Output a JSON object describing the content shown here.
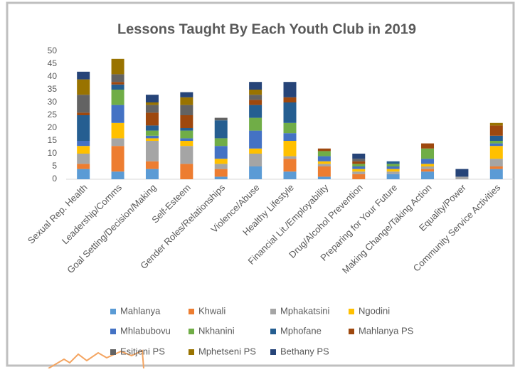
{
  "chart_data": {
    "type": "stacked_bar",
    "title": "Lessons Taught By Each Youth Club in 2019",
    "categories": [
      "Sexual Rep. Health",
      "Leadership/Comms",
      "Goal Setting/Decision/Making",
      "Self-Esteem",
      "Gender Roles/Relationships",
      "Violence/Abuse",
      "Healthy Lifestyle",
      "Financial Lit./Employability",
      "Drug/Alcohol Prevention",
      "Preparing for Your Future",
      "Making Change/Taking Action",
      "Equality/Power",
      "Community Service Activities"
    ],
    "series": [
      {
        "name": "Mahlanya",
        "color": "#5b9bd5",
        "values": [
          4,
          3,
          4,
          0,
          1,
          5,
          3,
          1,
          0,
          2,
          3,
          0,
          4
        ]
      },
      {
        "name": "Khwali",
        "color": "#ed7d31",
        "values": [
          2,
          10,
          3,
          6,
          3,
          0,
          5,
          4,
          2,
          0,
          1,
          0,
          1
        ]
      },
      {
        "name": "Mphakatsini",
        "color": "#a5a5a5",
        "values": [
          4,
          3,
          8,
          7,
          2,
          5,
          1,
          1,
          1,
          1,
          1,
          1,
          3
        ]
      },
      {
        "name": "Ngodini",
        "color": "#ffc000",
        "values": [
          3,
          6,
          1,
          2,
          2,
          2,
          6,
          1,
          1,
          1,
          1,
          0,
          5
        ]
      },
      {
        "name": "Mhlabubovu",
        "color": "#4472c4",
        "values": [
          2,
          7,
          1,
          1,
          5,
          7,
          3,
          2,
          1,
          1,
          2,
          0,
          1
        ]
      },
      {
        "name": "Nkhanini",
        "color": "#70ad47",
        "values": [
          0,
          6,
          2,
          3,
          3,
          5,
          4,
          2,
          1,
          1,
          4,
          0,
          1
        ]
      },
      {
        "name": "Mphofane",
        "color": "#255e91",
        "values": [
          10,
          2,
          2,
          1,
          7,
          5,
          8,
          0,
          0,
          1,
          0,
          0,
          2
        ]
      },
      {
        "name": "Mahlanya PS",
        "color": "#9e480e",
        "values": [
          1,
          1,
          5,
          5,
          0,
          2,
          2,
          1,
          1,
          0,
          2,
          0,
          4
        ]
      },
      {
        "name": "Esitjeni PS",
        "color": "#636363",
        "values": [
          7,
          3,
          3,
          4,
          1,
          2,
          0,
          0,
          1,
          0,
          0,
          0,
          0
        ]
      },
      {
        "name": "Mphetseni PS",
        "color": "#997300",
        "values": [
          6,
          6,
          1,
          3,
          0,
          2,
          0,
          0,
          0,
          0,
          0,
          0,
          1
        ]
      },
      {
        "name": "Bethany PS",
        "color": "#264478",
        "values": [
          3,
          0,
          3,
          2,
          0,
          3,
          6,
          0,
          2,
          0,
          0,
          3,
          0
        ]
      }
    ],
    "ylim": [
      0,
      50
    ],
    "yticks": [
      0,
      5,
      10,
      15,
      20,
      25,
      30,
      35,
      40,
      45,
      50
    ],
    "grid": false
  }
}
